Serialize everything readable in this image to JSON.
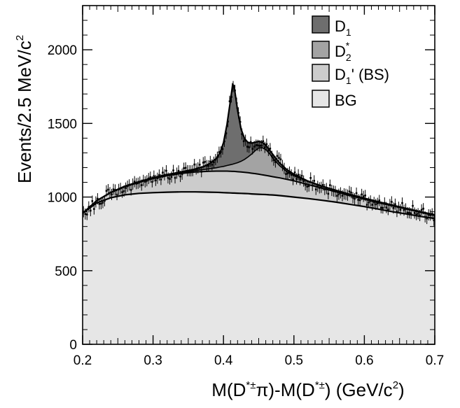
{
  "chart_data": {
    "type": "area",
    "title": "",
    "xlabel": {
      "parts": [
        "M(D",
        "*±",
        "π)-M(D",
        "*±",
        ") (GeV/c",
        "2",
        ")"
      ]
    },
    "ylabel": {
      "parts": [
        "Events/2.5 MeV/c",
        "2"
      ]
    },
    "xlim": [
      0.2,
      0.7
    ],
    "ylim": [
      0,
      2300
    ],
    "x_ticks": [
      0.2,
      0.3,
      0.4,
      0.5,
      0.6,
      0.7
    ],
    "x_tick_labels": [
      "0.2",
      "0.3",
      "0.4",
      "0.5",
      "0.6",
      "0.7"
    ],
    "y_ticks": [
      0,
      500,
      1000,
      1500,
      2000
    ],
    "y_tick_labels": [
      "0",
      "500",
      "1000",
      "1500",
      "2000"
    ],
    "grid": false,
    "legend_position": "top-right",
    "legend": [
      {
        "key": "d1",
        "parts": [
          "D",
          "1",
          ""
        ],
        "color": "#6e6e6e"
      },
      {
        "key": "d2",
        "parts": [
          "D",
          "2",
          "*"
        ],
        "color": "#a3a3a3"
      },
      {
        "key": "d1p",
        "parts": [
          "D",
          "1",
          "' (BS)"
        ],
        "color": "#cccccc"
      },
      {
        "key": "bg",
        "parts": [
          "BG",
          "",
          ""
        ],
        "color": "#e6e6e6"
      }
    ],
    "x": [
      0.2,
      0.22,
      0.24,
      0.26,
      0.28,
      0.3,
      0.32,
      0.34,
      0.36,
      0.37,
      0.38,
      0.39,
      0.395,
      0.4,
      0.405,
      0.41,
      0.413,
      0.415,
      0.42,
      0.425,
      0.43,
      0.435,
      0.44,
      0.445,
      0.45,
      0.455,
      0.46,
      0.465,
      0.47,
      0.475,
      0.48,
      0.49,
      0.5,
      0.52,
      0.54,
      0.56,
      0.58,
      0.6,
      0.62,
      0.64,
      0.66,
      0.68,
      0.7
    ],
    "series": [
      {
        "key": "bg",
        "values": [
          890,
          960,
          995,
          1015,
          1025,
          1030,
          1033,
          1035,
          1035,
          1034,
          1033,
          1032,
          1031,
          1030,
          1029,
          1028,
          1027,
          1027,
          1026,
          1025,
          1024,
          1023,
          1021,
          1020,
          1019,
          1018,
          1017,
          1015,
          1014,
          1012,
          1010,
          1005,
          1000,
          990,
          978,
          965,
          950,
          935,
          918,
          900,
          885,
          868,
          855
        ]
      },
      {
        "key": "bs",
        "values": [
          890,
          975,
          1030,
          1070,
          1100,
          1125,
          1145,
          1160,
          1170,
          1173,
          1175,
          1176,
          1176,
          1176,
          1176,
          1175,
          1174,
          1174,
          1172,
          1170,
          1168,
          1165,
          1162,
          1159,
          1155,
          1151,
          1147,
          1143,
          1138,
          1134,
          1130,
          1120,
          1110,
          1085,
          1060,
          1035,
          1010,
          985,
          962,
          940,
          918,
          896,
          875
        ]
      },
      {
        "key": "d2",
        "values": [
          890,
          975,
          1031,
          1072,
          1102,
          1128,
          1149,
          1166,
          1180,
          1186,
          1192,
          1199,
          1204,
          1208,
          1214,
          1220,
          1223,
          1226,
          1233,
          1243,
          1256,
          1273,
          1292,
          1315,
          1333,
          1335,
          1322,
          1297,
          1266,
          1237,
          1212,
          1172,
          1145,
          1105,
          1072,
          1044,
          1017,
          991,
          967,
          944,
          921,
          899,
          878
        ]
      },
      {
        "key": "total",
        "values": [
          890,
          975,
          1032,
          1074,
          1105,
          1131,
          1153,
          1171,
          1190,
          1204,
          1226,
          1262,
          1300,
          1368,
          1493,
          1660,
          1765,
          1755,
          1590,
          1460,
          1395,
          1370,
          1366,
          1372,
          1378,
          1372,
          1352,
          1322,
          1290,
          1258,
          1230,
          1186,
          1155,
          1108,
          1074,
          1045,
          1018,
          992,
          968,
          945,
          922,
          900,
          879
        ]
      }
    ],
    "data_points": {
      "step": 0.0025,
      "errors": 38,
      "offsets": [
        5,
        -21,
        -35,
        6,
        -30,
        24,
        -40,
        -3,
        10,
        -32,
        -38,
        -38,
        -32,
        28,
        29,
        2,
        -17,
        12,
        3,
        -34,
        -4,
        -2,
        -33,
        -31,
        -15,
        -6,
        -1,
        -39,
        -3,
        9,
        -8,
        -9,
        -5,
        -29,
        0,
        -13,
        -9,
        3,
        9,
        -26,
        10,
        -22,
        -10,
        9,
        -24,
        20,
        2,
        27,
        -24,
        -33,
        -22,
        20,
        -33,
        -3,
        10,
        -30,
        -17,
        21,
        21,
        0,
        -3,
        -6,
        -7,
        32,
        -1,
        3,
        21,
        -30,
        27,
        27,
        -4,
        -11,
        11,
        -20,
        -12,
        -3,
        -1,
        14,
        -11,
        -25,
        -21,
        -29,
        -22,
        32,
        -24,
        -11,
        10,
        6,
        14,
        18,
        -16,
        -32,
        -3,
        -34,
        -31,
        6,
        -40,
        -28,
        -21,
        -25,
        -29,
        -24,
        12,
        -20,
        15,
        -13,
        15,
        -22,
        -31,
        -28,
        28,
        29,
        31,
        1,
        -8,
        -35,
        -22,
        -5,
        -16,
        -40,
        15,
        -23,
        11,
        -16,
        16,
        -14,
        -34,
        -40,
        -31,
        28,
        -18,
        17,
        -37,
        -12,
        -18,
        -10,
        10,
        -17,
        -7,
        -39,
        23,
        -9,
        -10,
        -9,
        -35,
        -21,
        -8,
        -24,
        -8,
        -8,
        -10,
        18,
        14,
        -17,
        -21,
        20,
        -22,
        -21,
        21,
        11,
        20,
        -40,
        -21,
        -8,
        -31,
        -12,
        -22,
        -12,
        10,
        -36,
        -35,
        2,
        -26,
        -37,
        0,
        21,
        -18,
        11,
        -36,
        -4,
        -18,
        30,
        -15,
        -4,
        -27,
        -25,
        -26,
        28,
        -18,
        -26,
        -17,
        -27,
        14,
        25,
        -28,
        -36,
        -9,
        -8,
        3,
        -38,
        -10
      ]
    }
  }
}
